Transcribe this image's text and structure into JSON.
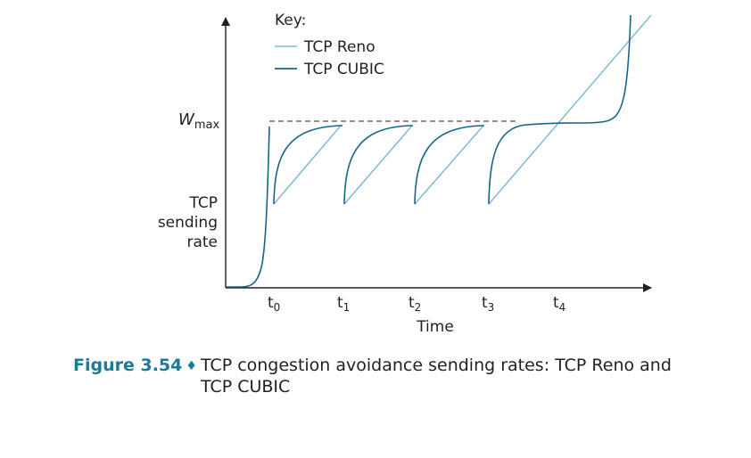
{
  "key": {
    "title": "Key:",
    "entries": [
      {
        "name": "TCP Reno",
        "color": "#7fb5d4"
      },
      {
        "name": "TCP CUBIC",
        "color": "#14678a"
      }
    ]
  },
  "axes": {
    "y_label_lines": [
      "TCP",
      "sending",
      "rate"
    ],
    "y_marker": {
      "base": "W",
      "sub": "max"
    },
    "x_label": "Time",
    "x_ticks": [
      {
        "base": "t",
        "sub": "0"
      },
      {
        "base": "t",
        "sub": "1"
      },
      {
        "base": "t",
        "sub": "2"
      },
      {
        "base": "t",
        "sub": "3"
      },
      {
        "base": "t",
        "sub": "4"
      }
    ]
  },
  "colors": {
    "reno": "#7fb5d4",
    "cubic": "#14678a",
    "axis": "#231f20",
    "caption_accent": "#1a7a9c"
  },
  "caption": {
    "figure": "Figure 3.54",
    "text": "TCP congestion avoidance sending rates: TCP Reno and TCP CUBIC"
  }
}
